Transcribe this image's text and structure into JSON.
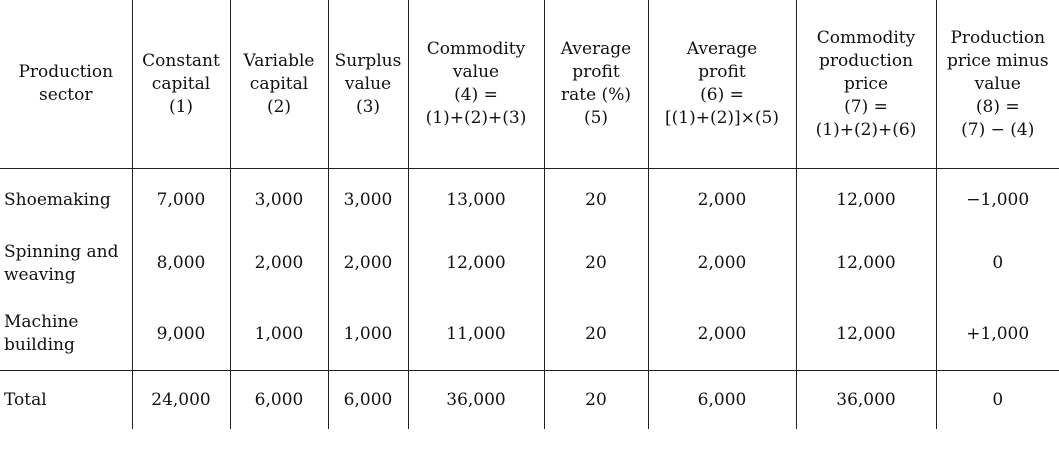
{
  "table": {
    "headers": [
      "Production\nsector",
      "Constant\ncapital\n(1)",
      "Variable\ncapital\n(2)",
      "Surplus\nvalue\n(3)",
      "Commodity\nvalue\n(4) =\n(1)+(2)+(3)",
      "Average\nprofit\nrate (%)\n(5)",
      "Average\nprofit\n(6) =\n[(1)+(2)]×(5)",
      "Commodity\nproduction\nprice\n(7) =\n(1)+(2)+(6)",
      "Production\nprice minus\nvalue\n(8) =\n(7) − (4)"
    ],
    "rows": [
      {
        "sector": "Shoemaking",
        "constant": "7,000",
        "variable": "3,000",
        "surplus": "3,000",
        "commodity_value": "13,000",
        "profit_rate": "20",
        "avg_profit": "2,000",
        "production_price": "12,000",
        "difference": "−1,000"
      },
      {
        "sector": "Spinning and\nweaving",
        "constant": "8,000",
        "variable": "2,000",
        "surplus": "2,000",
        "commodity_value": "12,000",
        "profit_rate": "20",
        "avg_profit": "2,000",
        "production_price": "12,000",
        "difference": "0"
      },
      {
        "sector": "Machine\nbuilding",
        "constant": "9,000",
        "variable": "1,000",
        "surplus": "1,000",
        "commodity_value": "11,000",
        "profit_rate": "20",
        "avg_profit": "2,000",
        "production_price": "12,000",
        "difference": "+1,000"
      }
    ],
    "total": {
      "sector": "Total",
      "constant": "24,000",
      "variable": "6,000",
      "surplus": "6,000",
      "commodity_value": "36,000",
      "profit_rate": "20",
      "avg_profit": "6,000",
      "production_price": "36,000",
      "difference": "0"
    }
  }
}
